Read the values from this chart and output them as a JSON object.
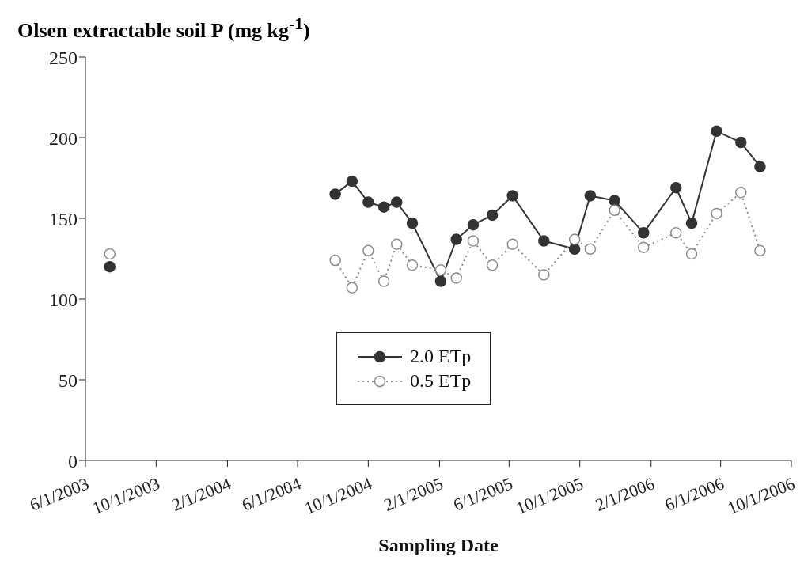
{
  "chart_data": {
    "type": "line",
    "ylabel": "Olsen extractable soil P (mg kg$^{-1}$)",
    "xlabel": "Sampling Date",
    "xlim": [
      "2003-06-01",
      "2006-10-01"
    ],
    "xticks": [
      {
        "value": "2003-06-01",
        "label": "6/1/2003"
      },
      {
        "value": "2003-10-01",
        "label": "10/1/2003"
      },
      {
        "value": "2004-02-01",
        "label": "2/1/2004"
      },
      {
        "value": "2004-06-01",
        "label": "6/1/2004"
      },
      {
        "value": "2004-10-01",
        "label": "10/1/2004"
      },
      {
        "value": "2005-02-01",
        "label": "2/1/2005"
      },
      {
        "value": "2005-06-01",
        "label": "6/1/2005"
      },
      {
        "value": "2005-10-01",
        "label": "10/1/2005"
      },
      {
        "value": "2006-02-01",
        "label": "2/1/2006"
      },
      {
        "value": "2006-06-01",
        "label": "6/1/2006"
      },
      {
        "value": "2006-10-01",
        "label": "10/1/2006"
      }
    ],
    "ylim": [
      0,
      250
    ],
    "yticks": [
      0,
      50,
      100,
      150,
      200,
      250
    ],
    "grid": false,
    "legend": "bottom",
    "marker": "circle",
    "x": [
      "2003-07-13",
      "2004-02-01",
      "2004-08-05",
      "2004-09-03",
      "2004-10-01",
      "2004-10-28",
      "2004-11-19",
      "2004-12-16",
      "2005-02-03",
      "2005-03-02",
      "2005-03-31",
      "2005-05-03",
      "2005-06-07",
      "2005-07-31",
      "2005-09-22",
      "2005-10-19",
      "2005-11-30",
      "2006-01-19",
      "2006-03-16",
      "2006-04-12",
      "2006-05-25",
      "2006-07-06",
      "2006-08-08"
    ],
    "series": [
      {
        "name": "2.0 ETp",
        "color": "#333333",
        "line_style": "solid",
        "values": [
          120,
          null,
          165,
          173,
          160,
          157,
          160,
          147,
          111,
          137,
          146,
          152,
          164,
          136,
          131,
          164,
          161,
          141,
          169,
          147,
          204,
          197,
          182
        ]
      },
      {
        "name": "0.5 ETp",
        "color": "#8c8c8c",
        "line_style": "dotted",
        "values": [
          128,
          null,
          124,
          107,
          130,
          111,
          134,
          121,
          118,
          113,
          136,
          121,
          134,
          115,
          137,
          131,
          155,
          132,
          141,
          128,
          153,
          166,
          130
        ]
      }
    ]
  }
}
